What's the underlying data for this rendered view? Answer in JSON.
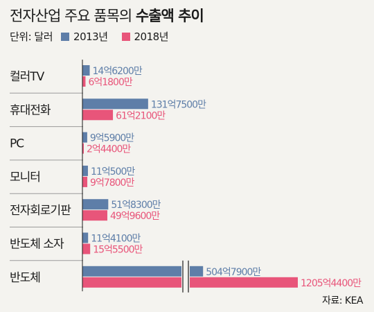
{
  "colors": {
    "s2013": "#5e7ea8",
    "s2018": "#e8557a",
    "divider": "#9a9a9a"
  },
  "chart_data": {
    "type": "bar",
    "orientation": "horizontal",
    "title": "전자산업 주요 품목의 수출액 추이",
    "title_parts": {
      "normal": "전자산업 주요 품목의 ",
      "bold": "수출액 추이"
    },
    "unit": "단위: 달러",
    "source": "자료: KEA",
    "categories": [
      "컬러TV",
      "휴대전화",
      "PC",
      "모니터",
      "전자회로기판",
      "반도체 소자",
      "반도체"
    ],
    "series": [
      {
        "name": "2013년",
        "values": [
          1462000000,
          13175000000,
          959000000,
          1105000000,
          5183000000,
          1141000000,
          50479000000
        ],
        "labels": [
          "14억6200만",
          "131억7500만",
          "9억5900만",
          "11억500만",
          "51억8300만",
          "11억4100만",
          "504억7900만"
        ]
      },
      {
        "name": "2018년",
        "values": [
          618000000,
          6121000000,
          244000000,
          978000000,
          4996000000,
          1555000000,
          120544000000
        ],
        "labels": [
          "6억1800만",
          "61억2100만",
          "2억4400만",
          "9억7800만",
          "49억9600만",
          "15억5500만",
          "1205억4400만"
        ]
      }
    ],
    "axis_break": true,
    "legend": "top-left",
    "grid": false
  }
}
